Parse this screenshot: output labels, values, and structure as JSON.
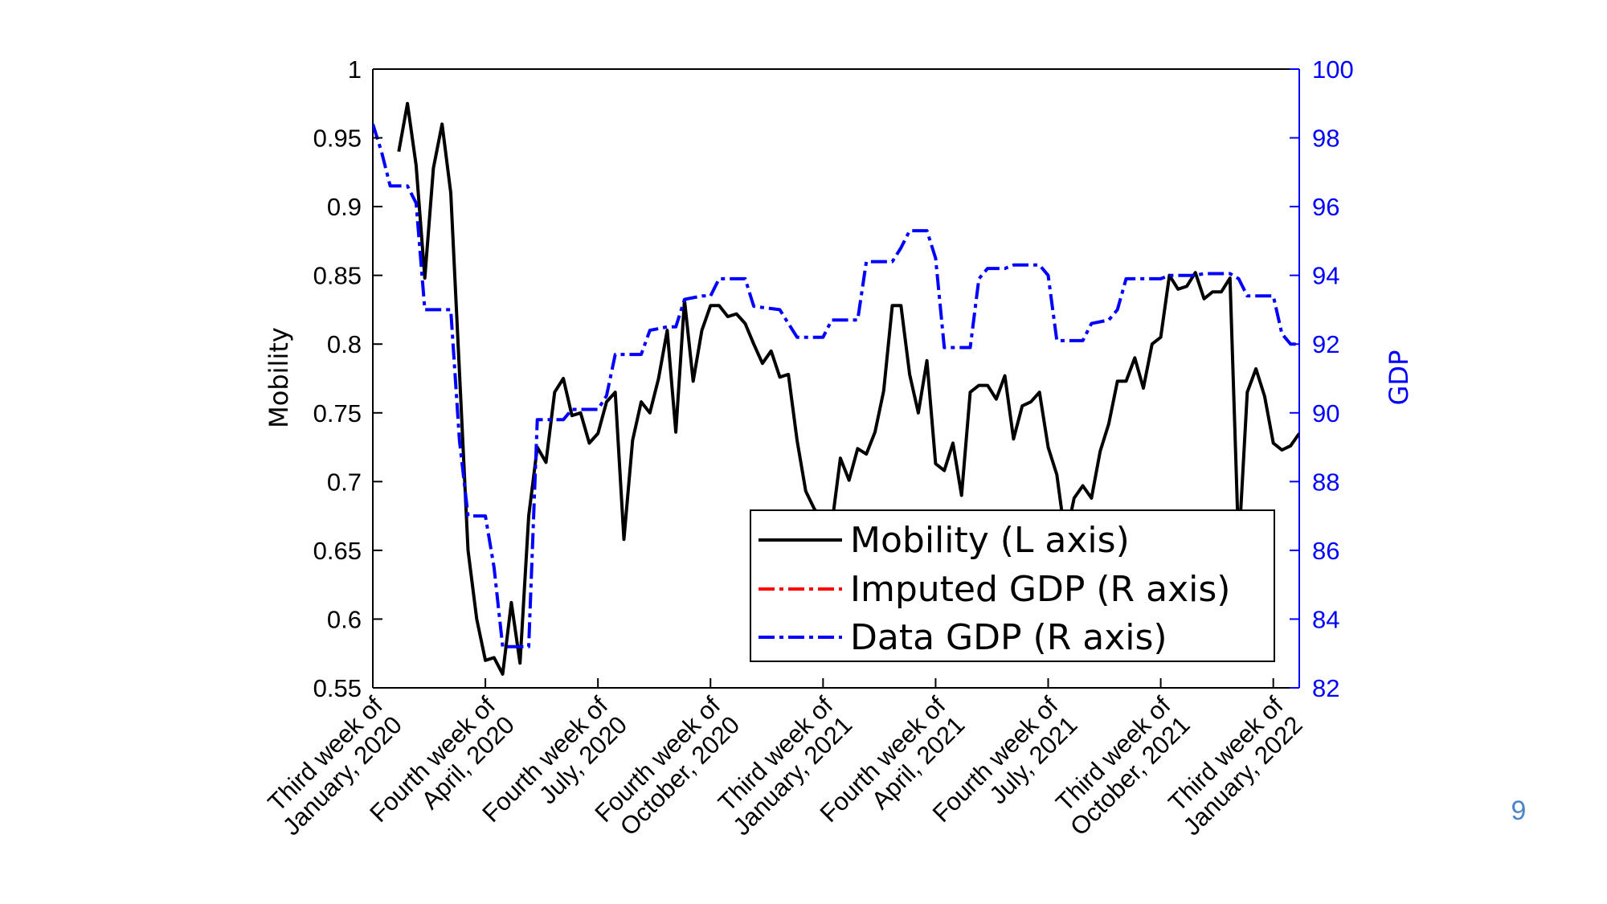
{
  "slide": {
    "page_number": "9"
  },
  "colors": {
    "mobility": "#000000",
    "imputed_gdp": "#ff0000",
    "data_gdp": "#0000ff",
    "right_axis": "#0000ff",
    "left_axis": "#000000",
    "page_number": "#4a86c8"
  },
  "chart_data": {
    "type": "line",
    "x_type": "weekly",
    "x_ticks": [
      {
        "week": 0,
        "lines": [
          "Third week of",
          "January, 2020"
        ]
      },
      {
        "week": 13,
        "lines": [
          "Fourth week of",
          "April, 2020"
        ]
      },
      {
        "week": 26,
        "lines": [
          "Fourth week of",
          "July, 2020"
        ]
      },
      {
        "week": 39,
        "lines": [
          "Fourth week of",
          "October, 2020"
        ]
      },
      {
        "week": 52,
        "lines": [
          "Third week of",
          "January, 2021"
        ]
      },
      {
        "week": 65,
        "lines": [
          "Fourth week of",
          "April, 2021"
        ]
      },
      {
        "week": 78,
        "lines": [
          "Fourth week of",
          "July, 2021"
        ]
      },
      {
        "week": 91,
        "lines": [
          "Third week of",
          "October, 2021"
        ]
      },
      {
        "week": 104,
        "lines": [
          "Third week of",
          "January, 2022"
        ]
      }
    ],
    "xlim": [
      0,
      107
    ],
    "y_left": {
      "label": "Mobility",
      "lim": [
        0.55,
        1
      ],
      "ticks": [
        "0.55",
        "0.6",
        "0.65",
        "0.7",
        "0.75",
        "0.8",
        "0.85",
        "0.9",
        "0.95",
        "1"
      ]
    },
    "y_right": {
      "label": "GDP",
      "lim": [
        82,
        100
      ],
      "ticks": [
        "82",
        "84",
        "86",
        "88",
        "90",
        "92",
        "94",
        "96",
        "98",
        "100"
      ]
    },
    "legend": {
      "position": "bottom-right",
      "entries": [
        {
          "label": "Mobility (L axis)",
          "style": "solid",
          "color": "#000000"
        },
        {
          "label": "Imputed GDP (R axis)",
          "style": "dash-dot",
          "color": "#ff0000"
        },
        {
          "label": "Data GDP (R axis)",
          "style": "dash-dot",
          "color": "#0000ff"
        }
      ]
    },
    "series": [
      {
        "name": "Mobility (L axis)",
        "axis": "left",
        "style": "solid",
        "color": "#000000",
        "points": [
          [
            3,
            0.94
          ],
          [
            4,
            0.975
          ],
          [
            5,
            0.93
          ],
          [
            6,
            0.848
          ],
          [
            7,
            0.928
          ],
          [
            8,
            0.96
          ],
          [
            9,
            0.91
          ],
          [
            10,
            0.78
          ],
          [
            11,
            0.65
          ],
          [
            12,
            0.6
          ],
          [
            13,
            0.57
          ],
          [
            14,
            0.572
          ],
          [
            15,
            0.56
          ],
          [
            16,
            0.612
          ],
          [
            17,
            0.568
          ],
          [
            18,
            0.675
          ],
          [
            19,
            0.725
          ],
          [
            20,
            0.714
          ],
          [
            21,
            0.765
          ],
          [
            22,
            0.775
          ],
          [
            23,
            0.748
          ],
          [
            24,
            0.75
          ],
          [
            25,
            0.728
          ],
          [
            26,
            0.735
          ],
          [
            27,
            0.758
          ],
          [
            28,
            0.765
          ],
          [
            29,
            0.658
          ],
          [
            30,
            0.73
          ],
          [
            31,
            0.758
          ],
          [
            32,
            0.75
          ],
          [
            33,
            0.775
          ],
          [
            34,
            0.81
          ],
          [
            35,
            0.736
          ],
          [
            36,
            0.832
          ],
          [
            37,
            0.773
          ],
          [
            38,
            0.81
          ],
          [
            39,
            0.828
          ],
          [
            40,
            0.828
          ],
          [
            41,
            0.82
          ],
          [
            42,
            0.822
          ],
          [
            43,
            0.815
          ],
          [
            44,
            0.8
          ],
          [
            45,
            0.786
          ],
          [
            46,
            0.795
          ],
          [
            47,
            0.776
          ],
          [
            48,
            0.778
          ],
          [
            49,
            0.73
          ],
          [
            50,
            0.693
          ],
          [
            51,
            0.68
          ],
          [
            52,
            0.673
          ],
          [
            53,
            0.668
          ],
          [
            54,
            0.717
          ],
          [
            55,
            0.701
          ],
          [
            56,
            0.724
          ],
          [
            57,
            0.72
          ],
          [
            58,
            0.736
          ],
          [
            59,
            0.766
          ],
          [
            60,
            0.828
          ],
          [
            61,
            0.828
          ],
          [
            62,
            0.778
          ],
          [
            63,
            0.75
          ],
          [
            64,
            0.788
          ],
          [
            65,
            0.713
          ],
          [
            66,
            0.708
          ],
          [
            67,
            0.728
          ],
          [
            68,
            0.69
          ],
          [
            69,
            0.765
          ],
          [
            70,
            0.77
          ],
          [
            71,
            0.77
          ],
          [
            72,
            0.76
          ],
          [
            73,
            0.777
          ],
          [
            74,
            0.731
          ],
          [
            75,
            0.755
          ],
          [
            76,
            0.758
          ],
          [
            77,
            0.765
          ],
          [
            78,
            0.725
          ],
          [
            79,
            0.705
          ],
          [
            80,
            0.658
          ],
          [
            81,
            0.688
          ],
          [
            82,
            0.697
          ],
          [
            83,
            0.688
          ],
          [
            84,
            0.722
          ],
          [
            85,
            0.742
          ],
          [
            86,
            0.773
          ],
          [
            87,
            0.773
          ],
          [
            88,
            0.79
          ],
          [
            89,
            0.768
          ],
          [
            90,
            0.8
          ],
          [
            91,
            0.805
          ],
          [
            92,
            0.85
          ],
          [
            93,
            0.84
          ],
          [
            94,
            0.842
          ],
          [
            95,
            0.852
          ],
          [
            96,
            0.833
          ],
          [
            97,
            0.838
          ],
          [
            98,
            0.838
          ],
          [
            99,
            0.848
          ],
          [
            100,
            0.652
          ],
          [
            101,
            0.765
          ],
          [
            102,
            0.782
          ],
          [
            103,
            0.762
          ],
          [
            104,
            0.728
          ],
          [
            105,
            0.723
          ],
          [
            106,
            0.726
          ],
          [
            107,
            0.735
          ]
        ]
      },
      {
        "name": "Data GDP (R axis)",
        "axis": "right",
        "style": "dash-dot",
        "color": "#0000ff",
        "points": [
          [
            0,
            98.4
          ],
          [
            1,
            97.6
          ],
          [
            2,
            96.6
          ],
          [
            4,
            96.6
          ],
          [
            5,
            96.1
          ],
          [
            6,
            93.0
          ],
          [
            9,
            93.0
          ],
          [
            10,
            89.2
          ],
          [
            11,
            87.0
          ],
          [
            13,
            87.0
          ],
          [
            14,
            85.5
          ],
          [
            15,
            83.2
          ],
          [
            18,
            83.2
          ],
          [
            19,
            89.8
          ],
          [
            22,
            89.8
          ],
          [
            23,
            90.1
          ],
          [
            26,
            90.1
          ],
          [
            27,
            90.5
          ],
          [
            28,
            91.7
          ],
          [
            31,
            91.7
          ],
          [
            32,
            92.4
          ],
          [
            34,
            92.5
          ],
          [
            35,
            92.5
          ],
          [
            36,
            93.3
          ],
          [
            38,
            93.4
          ],
          [
            39,
            93.4
          ],
          [
            40,
            93.9
          ],
          [
            43,
            93.9
          ],
          [
            44,
            93.1
          ],
          [
            47,
            93.0
          ],
          [
            48,
            92.6
          ],
          [
            49,
            92.2
          ],
          [
            52,
            92.2
          ],
          [
            53,
            92.7
          ],
          [
            56,
            92.7
          ],
          [
            57,
            94.4
          ],
          [
            60,
            94.4
          ],
          [
            61,
            94.8
          ],
          [
            62,
            95.3
          ],
          [
            64,
            95.3
          ],
          [
            65,
            94.5
          ],
          [
            66,
            91.9
          ],
          [
            69,
            91.9
          ],
          [
            70,
            93.9
          ],
          [
            71,
            94.2
          ],
          [
            73,
            94.2
          ],
          [
            74,
            94.3
          ],
          [
            77,
            94.3
          ],
          [
            78,
            94.0
          ],
          [
            79,
            92.1
          ],
          [
            82,
            92.1
          ],
          [
            83,
            92.6
          ],
          [
            85,
            92.7
          ],
          [
            86,
            93.0
          ],
          [
            87,
            93.9
          ],
          [
            91,
            93.9
          ],
          [
            92,
            94.0
          ],
          [
            95,
            94.0
          ],
          [
            96,
            94.05
          ],
          [
            99,
            94.05
          ],
          [
            100,
            93.9
          ],
          [
            101,
            93.4
          ],
          [
            104,
            93.4
          ],
          [
            105,
            92.3
          ],
          [
            106,
            92.0
          ],
          [
            107,
            92.0
          ]
        ]
      },
      {
        "name": "Imputed GDP (R axis)",
        "axis": "right",
        "style": "dash-dot",
        "color": "#ff0000",
        "points": []
      }
    ]
  }
}
